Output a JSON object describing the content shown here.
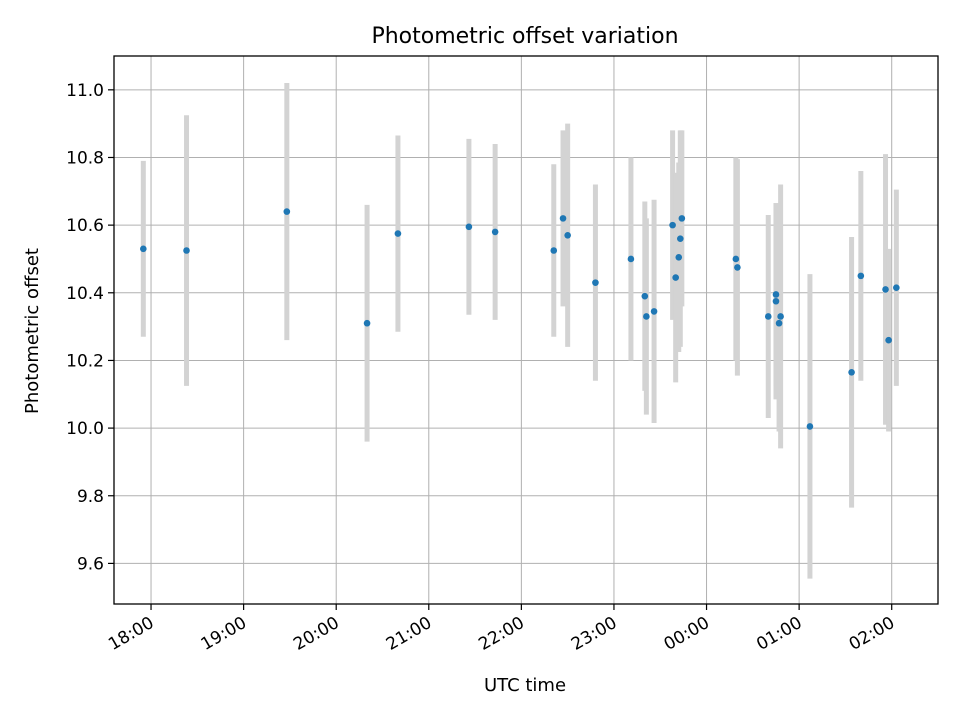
{
  "chart_data": {
    "type": "scatter",
    "title": "Photometric offset variation",
    "xlabel": "UTC time",
    "ylabel": "Photometric offset",
    "x_start": "17:36",
    "x_end": "02:30",
    "xticks": [
      "18:00",
      "19:00",
      "20:00",
      "21:00",
      "22:00",
      "23:00",
      "00:00",
      "01:00",
      "02:00"
    ],
    "yticks": [
      "9.6",
      "9.8",
      "10.0",
      "10.2",
      "10.4",
      "10.6",
      "10.8",
      "11.0"
    ],
    "ylim": [
      9.48,
      11.1
    ],
    "grid": true,
    "legend": "none",
    "colors": {
      "point": "#1f77b4",
      "errorbar": "#d3d3d3",
      "grid": "#b0b0b0"
    },
    "points": [
      {
        "t": "17:55",
        "y": 10.53,
        "err": 0.26
      },
      {
        "t": "18:23",
        "y": 10.525,
        "err": 0.4
      },
      {
        "t": "19:28",
        "y": 10.64,
        "err": 0.38
      },
      {
        "t": "20:20",
        "y": 10.31,
        "err": 0.35
      },
      {
        "t": "20:40",
        "y": 10.575,
        "err": 0.29
      },
      {
        "t": "21:26",
        "y": 10.595,
        "err": 0.26
      },
      {
        "t": "21:43",
        "y": 10.58,
        "err": 0.26
      },
      {
        "t": "22:21",
        "y": 10.525,
        "err": 0.255
      },
      {
        "t": "22:27",
        "y": 10.62,
        "err": 0.26
      },
      {
        "t": "22:30",
        "y": 10.57,
        "err": 0.33
      },
      {
        "t": "22:48",
        "y": 10.43,
        "err": 0.29
      },
      {
        "t": "23:11",
        "y": 10.5,
        "err": 0.3
      },
      {
        "t": "23:20",
        "y": 10.39,
        "err": 0.28
      },
      {
        "t": "23:21",
        "y": 10.33,
        "err": 0.29
      },
      {
        "t": "23:26",
        "y": 10.345,
        "err": 0.33
      },
      {
        "t": "23:38",
        "y": 10.6,
        "err": 0.28
      },
      {
        "t": "23:40",
        "y": 10.445,
        "err": 0.31
      },
      {
        "t": "23:42",
        "y": 10.505,
        "err": 0.28
      },
      {
        "t": "23:43",
        "y": 10.56,
        "err": 0.32
      },
      {
        "t": "23:44",
        "y": 10.62,
        "err": 0.26
      },
      {
        "t": "00:19",
        "y": 10.5,
        "err": 0.3
      },
      {
        "t": "00:20",
        "y": 10.475,
        "err": 0.32
      },
      {
        "t": "00:40",
        "y": 10.33,
        "err": 0.3
      },
      {
        "t": "00:45",
        "y": 10.375,
        "err": 0.29
      },
      {
        "t": "00:45",
        "y": 10.395,
        "err": 0.27
      },
      {
        "t": "00:47",
        "y": 10.31,
        "err": 0.32
      },
      {
        "t": "00:48",
        "y": 10.33,
        "err": 0.39
      },
      {
        "t": "01:07",
        "y": 10.005,
        "err": 0.45
      },
      {
        "t": "01:34",
        "y": 10.165,
        "err": 0.4
      },
      {
        "t": "01:40",
        "y": 10.45,
        "err": 0.31
      },
      {
        "t": "01:56",
        "y": 10.41,
        "err": 0.4
      },
      {
        "t": "01:58",
        "y": 10.26,
        "err": 0.27
      },
      {
        "t": "02:03",
        "y": 10.415,
        "err": 0.29
      }
    ]
  }
}
